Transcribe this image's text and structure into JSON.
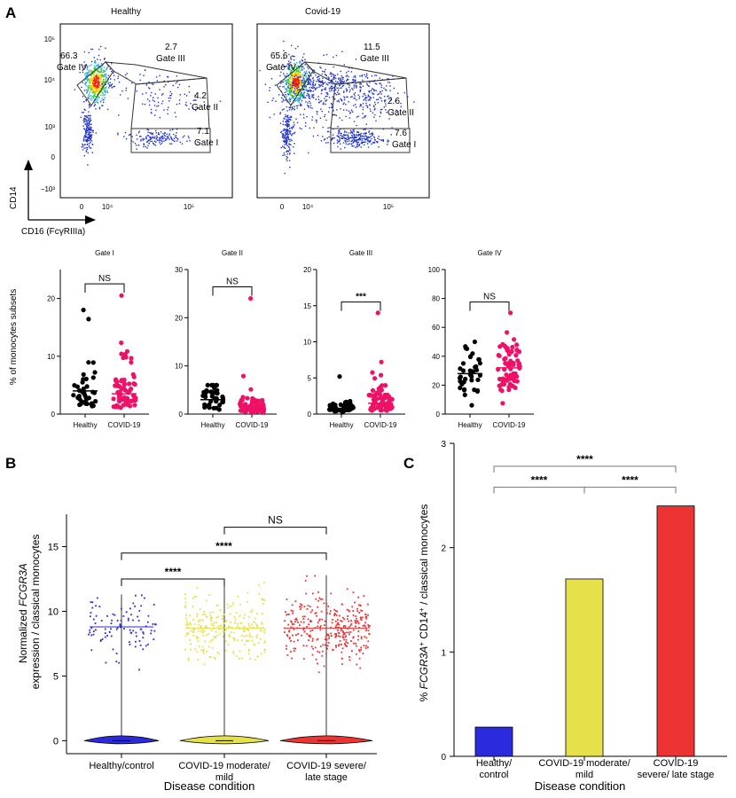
{
  "panel_labels": {
    "a": "A",
    "b": "B",
    "c": "C"
  },
  "colors": {
    "healthy": "#000000",
    "covid": "#ee1166",
    "blue": "#2b2bdd",
    "yellow": "#e6e04a",
    "red": "#ee3333",
    "axis": "#000000"
  },
  "chart_data": [
    {
      "type": "scatter",
      "panel": "A-flow-healthy",
      "title": "Healthy",
      "xlabel": "CD16 (FcγRIIIa)",
      "ylabel": "CD14",
      "x_ticks": [
        "0",
        "10⁴",
        "10⁵"
      ],
      "y_ticks": [
        "10⁵",
        "10⁴",
        "10³",
        "0",
        "−10³"
      ],
      "gates": [
        {
          "name": "Gate IV",
          "value": "66.3"
        },
        {
          "name": "Gate III",
          "value": "2.7"
        },
        {
          "name": "Gate II",
          "value": "4.2"
        },
        {
          "name": "Gate I",
          "value": "7.1"
        }
      ]
    },
    {
      "type": "scatter",
      "panel": "A-flow-covid",
      "title": "Covid-19",
      "x_ticks": [
        "0",
        "10⁴",
        "10⁵"
      ],
      "gates": [
        {
          "name": "Gate IV",
          "value": "65.6"
        },
        {
          "name": "Gate III",
          "value": "11.5"
        },
        {
          "name": "Gate II",
          "value": "2.6"
        },
        {
          "name": "Gate I",
          "value": "7.6"
        }
      ]
    },
    {
      "type": "scatter",
      "panel": "A-gate-I",
      "title": "Gate I",
      "ylabel": "% of monocytes subsets",
      "categories": [
        "Healthy",
        "COVID-19"
      ],
      "ylim": [
        0,
        25
      ],
      "yticks": [
        0,
        10,
        20
      ],
      "series": [
        {
          "median": 4.0,
          "max": 18,
          "n": 40
        },
        {
          "median": 3.5,
          "max": 20.5,
          "n": 70
        }
      ],
      "significance": "NS"
    },
    {
      "type": "scatter",
      "panel": "A-gate-II",
      "title": "Gate II",
      "categories": [
        "Healthy",
        "COVID-19"
      ],
      "ylim": [
        0,
        30
      ],
      "yticks": [
        0,
        10,
        20,
        30
      ],
      "series": [
        {
          "median": 3.0,
          "max": 6,
          "n": 40
        },
        {
          "median": 1.5,
          "max": 24,
          "n": 70
        }
      ],
      "significance": "NS"
    },
    {
      "type": "scatter",
      "panel": "A-gate-III",
      "title": "Gate III",
      "categories": [
        "Healthy",
        "COVID-19"
      ],
      "ylim": [
        0,
        20
      ],
      "yticks": [
        0,
        5,
        10,
        15,
        20
      ],
      "series": [
        {
          "median": 0.8,
          "max": 5.2,
          "n": 40
        },
        {
          "median": 1.5,
          "max": 14,
          "n": 70
        }
      ],
      "significance": "***"
    },
    {
      "type": "scatter",
      "panel": "A-gate-IV",
      "title": "Gate IV",
      "categories": [
        "Healthy",
        "COVID-19"
      ],
      "ylim": [
        0,
        100
      ],
      "yticks": [
        0,
        20,
        40,
        60,
        80,
        100
      ],
      "series": [
        {
          "median": 28,
          "max": 50,
          "n": 40
        },
        {
          "median": 32,
          "max": 70,
          "n": 70
        }
      ],
      "significance": "NS"
    },
    {
      "type": "scatter",
      "panel": "B",
      "xlabel": "Disease condition",
      "ylabel": "Normalized FCGR3A expression / classical monocytes",
      "categories": [
        "Healthy/control",
        "COVID-19 moderate/ mild",
        "COVID-19 severe/ late stage"
      ],
      "ylim": [
        -1,
        17.5
      ],
      "yticks": [
        0,
        5,
        10,
        15
      ],
      "series": [
        {
          "median_expressing": 8.8,
          "max": 11.3,
          "n_points": 100
        },
        {
          "median_expressing": 8.7,
          "max": 12.3,
          "n_points": 260
        },
        {
          "median_expressing": 8.7,
          "max": 12.8,
          "n_points": 330
        }
      ],
      "comparisons": [
        {
          "pair": [
            0,
            1
          ],
          "label": "****"
        },
        {
          "pair": [
            0,
            2
          ],
          "label": "****"
        },
        {
          "pair": [
            1,
            2
          ],
          "label": "NS"
        }
      ]
    },
    {
      "type": "bar",
      "panel": "C",
      "xlabel": "Disease condition",
      "ylabel": "% FCGR3A⁺ CD14⁺ / classical monocytes",
      "categories": [
        "Healthy/ control",
        "COVID-19 moderate/ mild",
        "COVID-19 severe/ late stage"
      ],
      "values": [
        0.28,
        1.7,
        2.4
      ],
      "ylim": [
        0,
        3
      ],
      "yticks": [
        0,
        1,
        2,
        3
      ],
      "comparisons": [
        {
          "pair": [
            0,
            1
          ],
          "label": "****"
        },
        {
          "pair": [
            1,
            2
          ],
          "label": "****"
        },
        {
          "pair": [
            0,
            2
          ],
          "label": "****"
        }
      ]
    }
  ]
}
